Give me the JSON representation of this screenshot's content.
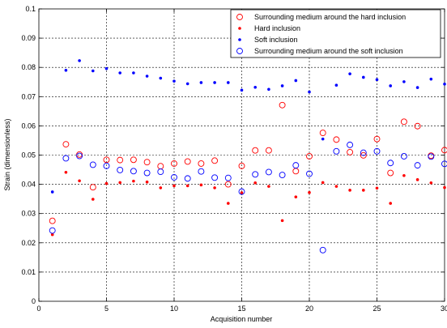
{
  "chart_data": {
    "type": "scatter",
    "title": "",
    "xlabel": "Acquisition number",
    "ylabel": "Strain (dimensionless)",
    "xlim": [
      0,
      30
    ],
    "ylim": [
      0,
      0.1
    ],
    "xticks": [
      "0",
      "5",
      "10",
      "15",
      "20",
      "25",
      "30"
    ],
    "yticks": [
      "0",
      "0.01",
      "0.02",
      "0.03",
      "0.04",
      "0.05",
      "0.06",
      "0.07",
      "0.08",
      "0.09",
      "0.1"
    ],
    "grid": true,
    "legend_position": "top-right",
    "series": [
      {
        "name": "Surrounding medium around the hard inclusion",
        "marker": "open-circle",
        "color": "#ff0000",
        "x": [
          1,
          2,
          3,
          4,
          5,
          6,
          7,
          8,
          9,
          10,
          11,
          12,
          13,
          14,
          15,
          16,
          17,
          18,
          19,
          20,
          21,
          22,
          23,
          24,
          25,
          26,
          27,
          28,
          29,
          30
        ],
        "y": [
          0.0275,
          0.0537,
          0.0502,
          0.039,
          0.0484,
          0.0483,
          0.0484,
          0.0476,
          0.0462,
          0.0471,
          0.0478,
          0.0471,
          0.0481,
          0.04,
          0.0463,
          0.0516,
          0.0516,
          0.0671,
          0.0445,
          0.0496,
          0.0576,
          0.0553,
          0.051,
          0.0499,
          0.0555,
          0.0439,
          0.0614,
          0.0599,
          0.0498,
          0.0517
        ]
      },
      {
        "name": "Hard inclusion",
        "marker": "dot",
        "color": "#ff0000",
        "x": [
          1,
          2,
          3,
          4,
          5,
          6,
          7,
          8,
          9,
          10,
          11,
          12,
          13,
          14,
          15,
          16,
          17,
          18,
          19,
          20,
          21,
          22,
          23,
          24,
          25,
          26,
          27,
          28,
          29,
          30
        ],
        "y": [
          0.0228,
          0.0441,
          0.0412,
          0.0349,
          0.0403,
          0.0406,
          0.0411,
          0.0408,
          0.0388,
          0.0395,
          0.0395,
          0.0398,
          0.0388,
          0.0335,
          0.0371,
          0.0405,
          0.0393,
          0.0276,
          0.0357,
          0.0372,
          0.0406,
          0.0393,
          0.038,
          0.038,
          0.0387,
          0.0335,
          0.043,
          0.0416,
          0.0405,
          0.0389
        ]
      },
      {
        "name": "Soft inclusion",
        "marker": "dot",
        "color": "#0000ff",
        "x": [
          1,
          2,
          3,
          4,
          5,
          6,
          7,
          8,
          9,
          10,
          11,
          12,
          13,
          14,
          15,
          16,
          17,
          18,
          19,
          20,
          21,
          22,
          23,
          24,
          25,
          26,
          27,
          28,
          29,
          30
        ],
        "y": [
          0.0374,
          0.079,
          0.0823,
          0.0788,
          0.0796,
          0.0781,
          0.0781,
          0.077,
          0.0763,
          0.0753,
          0.0744,
          0.0748,
          0.0748,
          0.0748,
          0.0722,
          0.0732,
          0.0725,
          0.0737,
          0.0755,
          0.0716,
          0.0555,
          0.0739,
          0.0778,
          0.0766,
          0.0758,
          0.0737,
          0.0751,
          0.0731,
          0.076,
          0.0743
        ]
      },
      {
        "name": "Surrounding medium around the soft inclusion",
        "marker": "open-circle",
        "color": "#0000ff",
        "x": [
          1,
          2,
          3,
          4,
          5,
          6,
          7,
          8,
          9,
          10,
          11,
          12,
          13,
          14,
          15,
          16,
          17,
          18,
          19,
          20,
          21,
          22,
          23,
          24,
          25,
          26,
          27,
          28,
          29,
          30
        ],
        "y": [
          0.0242,
          0.0489,
          0.0497,
          0.0467,
          0.0463,
          0.0449,
          0.0445,
          0.0439,
          0.0443,
          0.0424,
          0.042,
          0.0444,
          0.0423,
          0.0422,
          0.0375,
          0.0434,
          0.0442,
          0.0432,
          0.0465,
          0.0436,
          0.0175,
          0.0513,
          0.0535,
          0.0508,
          0.0513,
          0.0473,
          0.0496,
          0.0465,
          0.0495,
          0.047
        ]
      }
    ]
  }
}
